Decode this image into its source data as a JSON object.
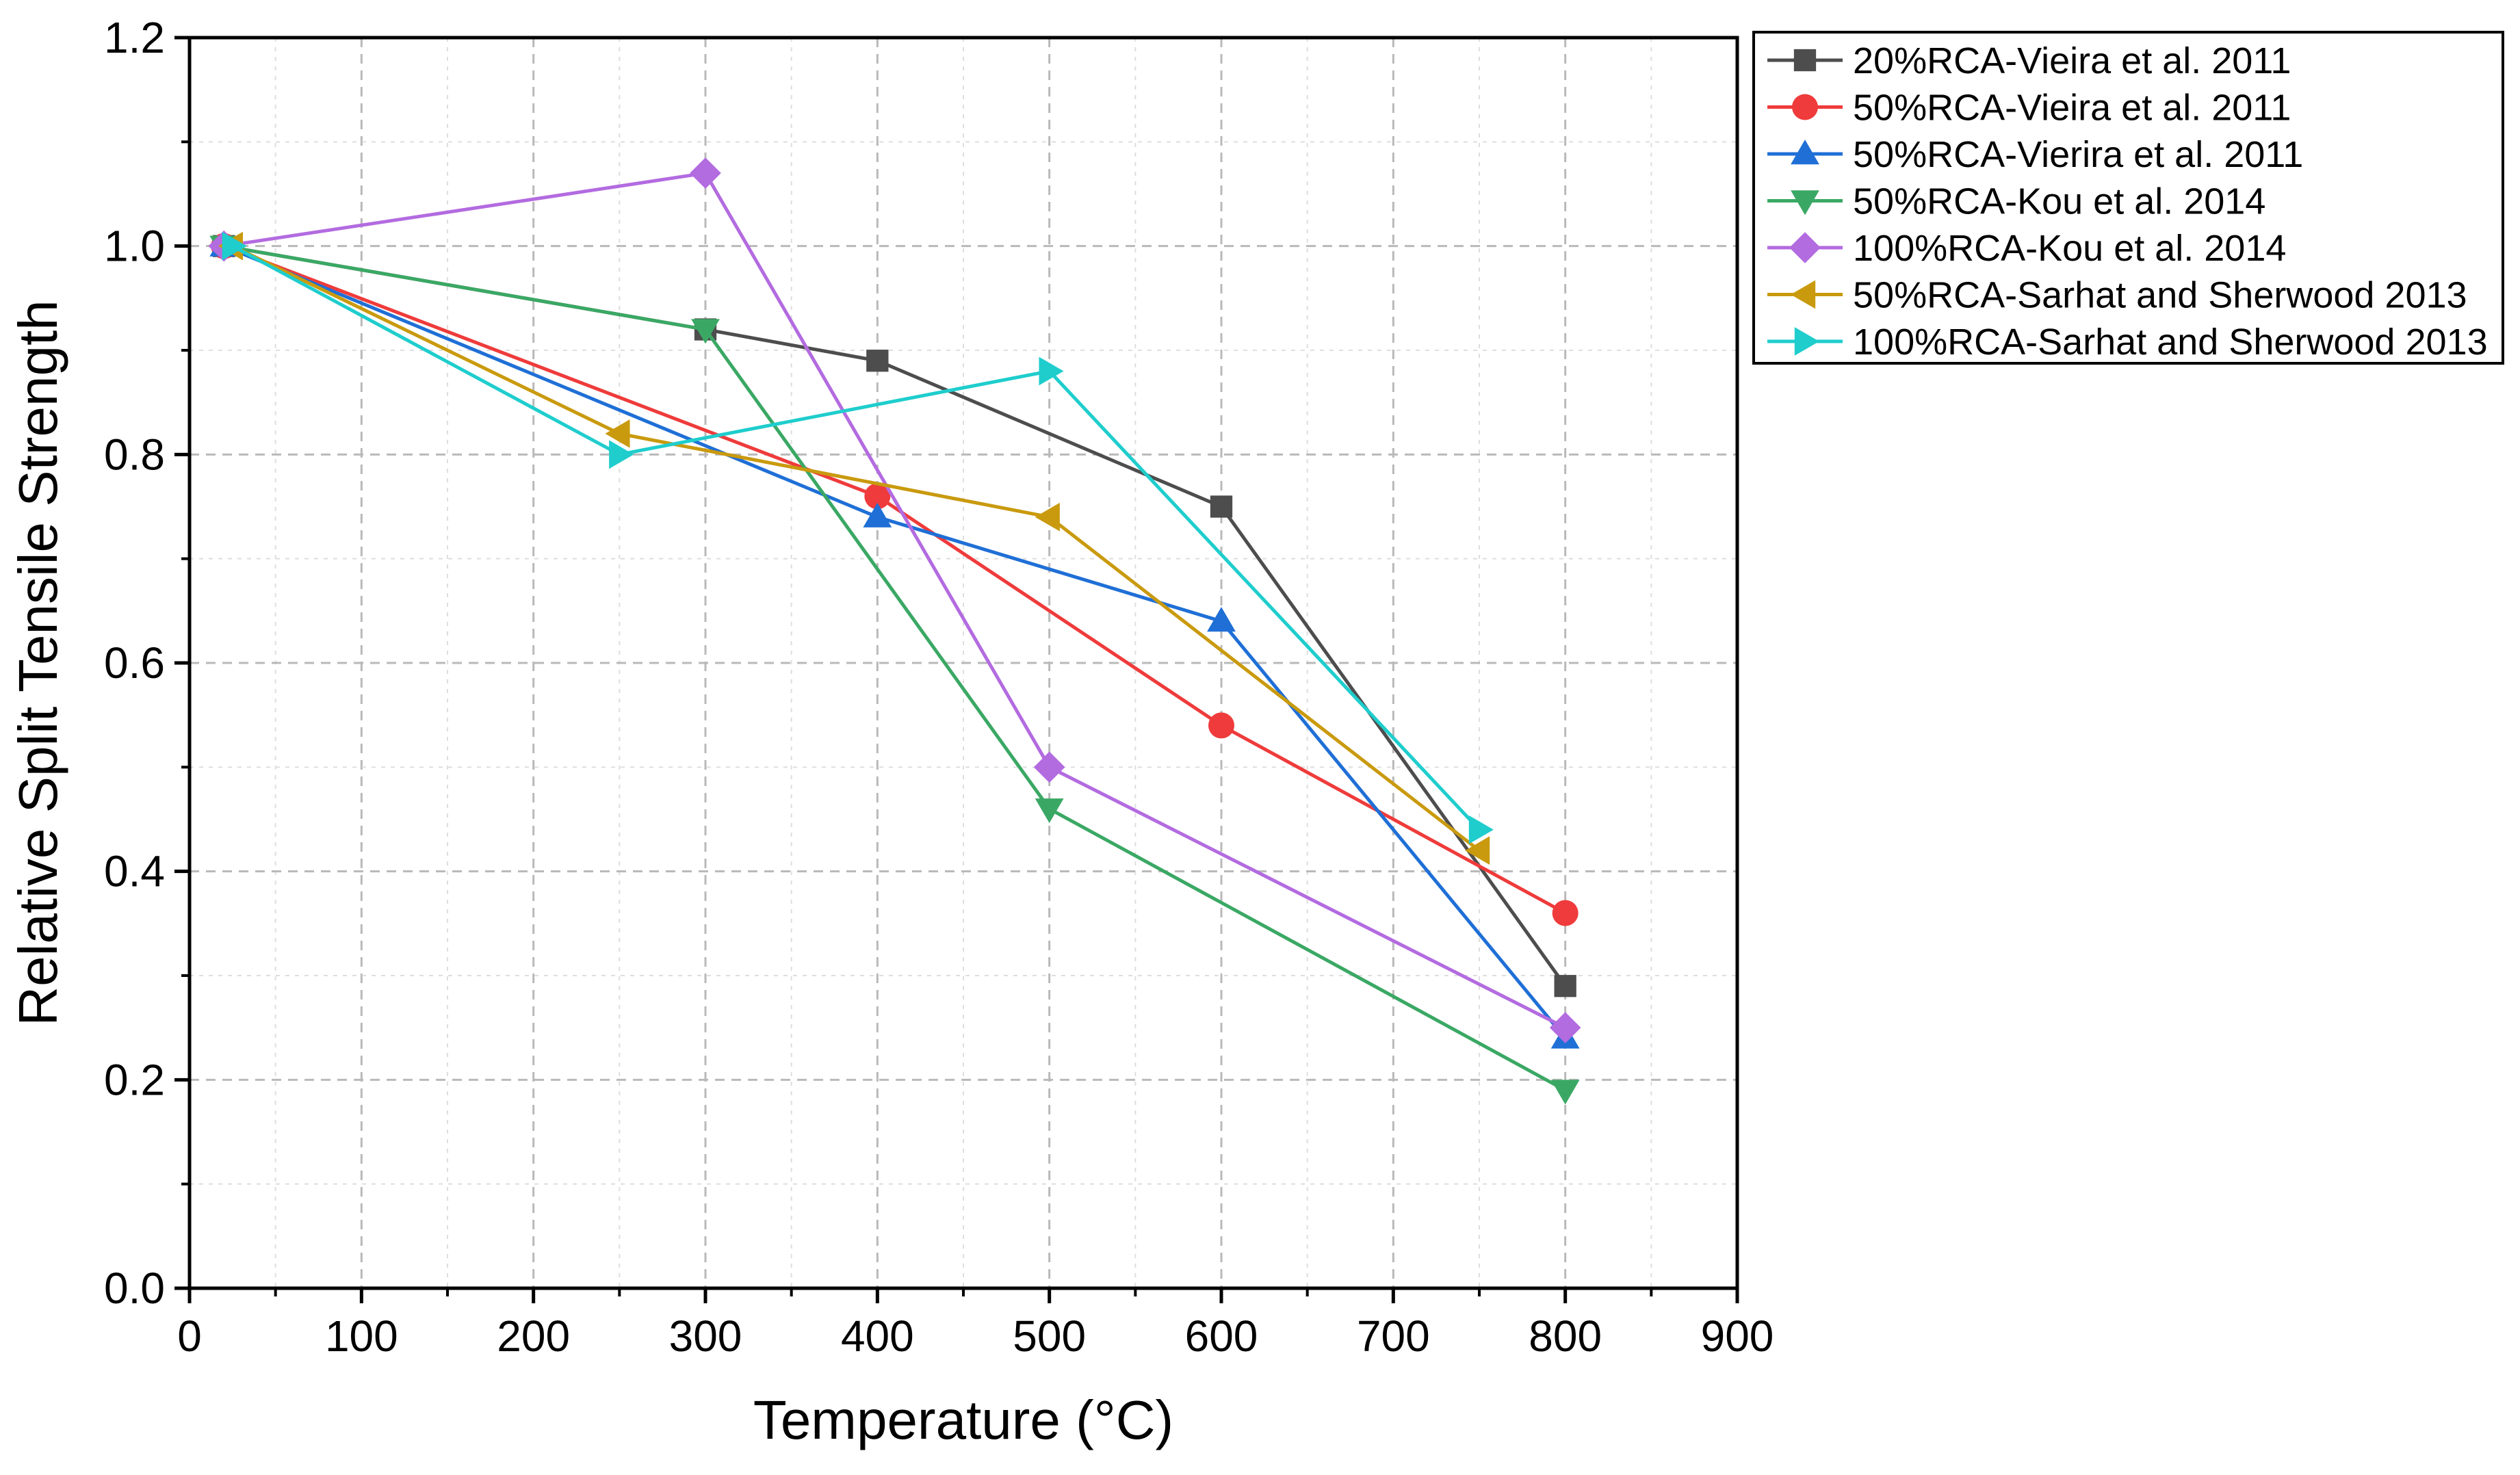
{
  "chart_data": {
    "type": "line",
    "title": "",
    "xlabel": "Temperature (°C)",
    "ylabel": "Relative Split Tensile Strength",
    "xlim": [
      0,
      900
    ],
    "ylim": [
      0.0,
      1.2
    ],
    "x_ticks": [
      "0",
      "100",
      "200",
      "300",
      "400",
      "500",
      "600",
      "700",
      "800",
      "900"
    ],
    "y_ticks": [
      "0.0",
      "0.2",
      "0.4",
      "0.6",
      "0.8",
      "1.0",
      "1.2"
    ],
    "grid": true,
    "legend_position": "top-right outside",
    "series": [
      {
        "name": "20%RCA-Vieira et al. 2011",
        "color": "#4d4d4d",
        "marker": "square",
        "x": [
          20,
          300,
          400,
          600,
          800
        ],
        "y": [
          1.0,
          0.92,
          0.89,
          0.75,
          0.29
        ]
      },
      {
        "name": "50%RCA-Vieira et al. 2011",
        "color": "#ef3b3b",
        "marker": "circle",
        "x": [
          20,
          400,
          600,
          800
        ],
        "y": [
          1.0,
          0.76,
          0.54,
          0.36
        ]
      },
      {
        "name": "50%RCA-Vierira et al. 2011",
        "color": "#1f6fd6",
        "marker": "triangle-up",
        "x": [
          20,
          400,
          600,
          800
        ],
        "y": [
          1.0,
          0.74,
          0.64,
          0.24
        ]
      },
      {
        "name": "50%RCA-Kou et al. 2014",
        "color": "#3aa864",
        "marker": "triangle-down",
        "x": [
          20,
          300,
          500,
          800
        ],
        "y": [
          1.0,
          0.92,
          0.46,
          0.19
        ]
      },
      {
        "name": "100%RCA-Kou et al. 2014",
        "color": "#b36be0",
        "marker": "diamond",
        "x": [
          20,
          300,
          500,
          800
        ],
        "y": [
          1.0,
          1.07,
          0.5,
          0.25
        ]
      },
      {
        "name": "50%RCA-Sarhat and Sherwood 2013",
        "color": "#c99a0e",
        "marker": "triangle-left",
        "x": [
          25,
          250,
          500,
          750
        ],
        "y": [
          1.0,
          0.82,
          0.74,
          0.42
        ]
      },
      {
        "name": "100%RCA-Sarhat and Sherwood 2013",
        "color": "#1fcdcd",
        "marker": "triangle-right",
        "x": [
          25,
          250,
          500,
          750
        ],
        "y": [
          1.0,
          0.8,
          0.88,
          0.44
        ]
      }
    ]
  }
}
